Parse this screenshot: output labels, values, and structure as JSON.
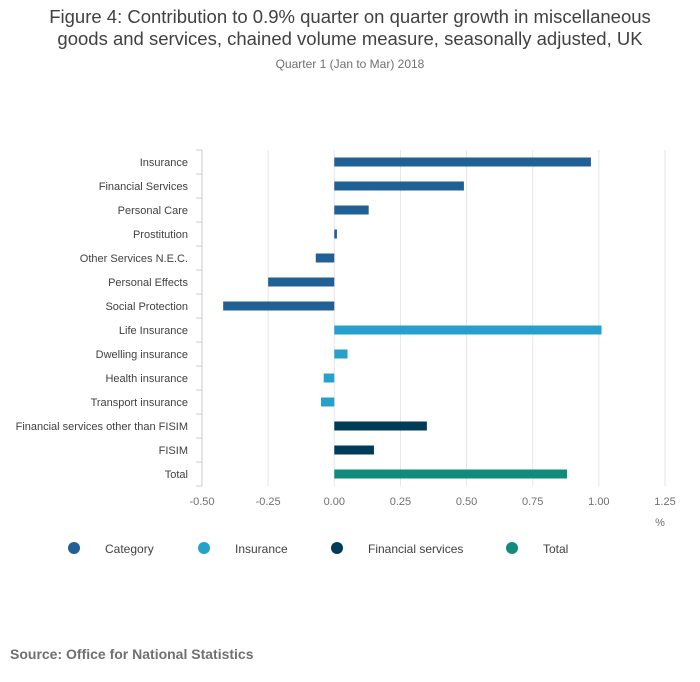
{
  "chart_data": {
    "type": "bar",
    "orientation": "horizontal",
    "title": "Figure 4: Contribution to 0.9% quarter on quarter growth in miscellaneous goods and services, chained volume measure, seasonally adjusted, UK",
    "title_lines": [
      "Figure 4: Contribution to 0.9% quarter on quarter growth in miscellaneous",
      "goods and services, chained volume measure, seasonally adjusted, UK"
    ],
    "subtitle": "Quarter 1 (Jan to Mar) 2018",
    "xlabel": "%",
    "xlim": [
      -0.5,
      1.25
    ],
    "xticks": [
      -0.5,
      -0.25,
      0,
      0.25,
      0.5,
      0.75,
      1,
      1.25
    ],
    "xtick_labels": [
      "-0.50",
      "-0.25",
      "0.00",
      "0.25",
      "0.50",
      "0.75",
      "1.00",
      "1.25"
    ],
    "categories": [
      "Insurance",
      "Financial Services",
      "Personal Care",
      "Prostitution",
      "Other Services N.E.C.",
      "Personal Effects",
      "Social Protection",
      "Life Insurance",
      "Dwelling insurance",
      "Health insurance",
      "Transport insurance",
      "Financial services other than FISIM",
      "FISIM",
      "Total"
    ],
    "values": [
      0.97,
      0.49,
      0.13,
      0.01,
      -0.07,
      -0.25,
      -0.42,
      1.01,
      0.05,
      -0.04,
      -0.05,
      0.35,
      0.15,
      0.88
    ],
    "groups": [
      "Category",
      "Category",
      "Category",
      "Category",
      "Category",
      "Category",
      "Category",
      "Insurance",
      "Insurance",
      "Insurance",
      "Insurance",
      "Financial services",
      "Financial services",
      "Total"
    ],
    "legend": [
      {
        "name": "Category",
        "color": "#206095"
      },
      {
        "name": "Insurance",
        "color": "#27a0cc"
      },
      {
        "name": "Financial services",
        "color": "#003c57"
      },
      {
        "name": "Total",
        "color": "#118c7b"
      }
    ],
    "legend_position": "bottom",
    "grid": true
  },
  "footer": {
    "source": "Source: Office for National Statistics"
  }
}
